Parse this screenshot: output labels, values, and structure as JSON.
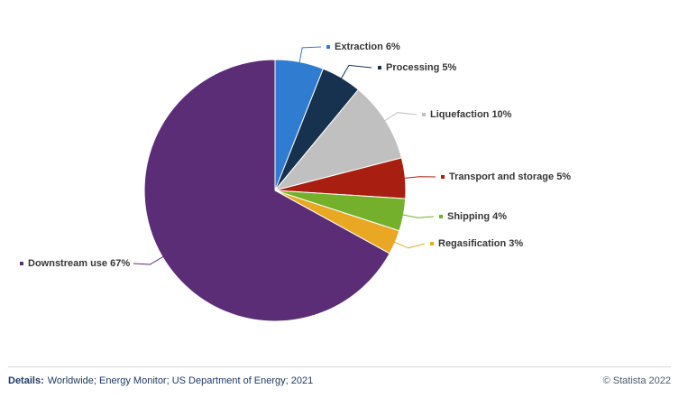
{
  "chart_data": {
    "type": "pie",
    "title": "",
    "unit": "%",
    "direction": "clockwise",
    "start_angle_deg": -90,
    "legend_position": "outside-callout-labels",
    "slices": [
      {
        "name": "Extraction",
        "value": 6,
        "label": "Extraction 6%",
        "color": "#2f7cd1"
      },
      {
        "name": "Processing",
        "value": 5,
        "label": "Processing 5%",
        "color": "#16324f"
      },
      {
        "name": "Liquefaction",
        "value": 10,
        "label": "Liquefaction 10%",
        "color": "#c0c0c0"
      },
      {
        "name": "Transport and storage",
        "value": 5,
        "label": "Transport and storage 5%",
        "color": "#a81e10"
      },
      {
        "name": "Shipping",
        "value": 4,
        "label": "Shipping 4%",
        "color": "#74b02c"
      },
      {
        "name": "Regasification",
        "value": 3,
        "label": "Regasification 3%",
        "color": "#e8a824"
      },
      {
        "name": "Downstream use",
        "value": 67,
        "label": "Downstream use 67%",
        "color": "#5b2d76"
      }
    ]
  },
  "footer": {
    "details_label": "Details:",
    "details_text": "Worldwide; Energy Monitor; US Department of Energy; 2021",
    "copyright": "© Statista 2022"
  }
}
